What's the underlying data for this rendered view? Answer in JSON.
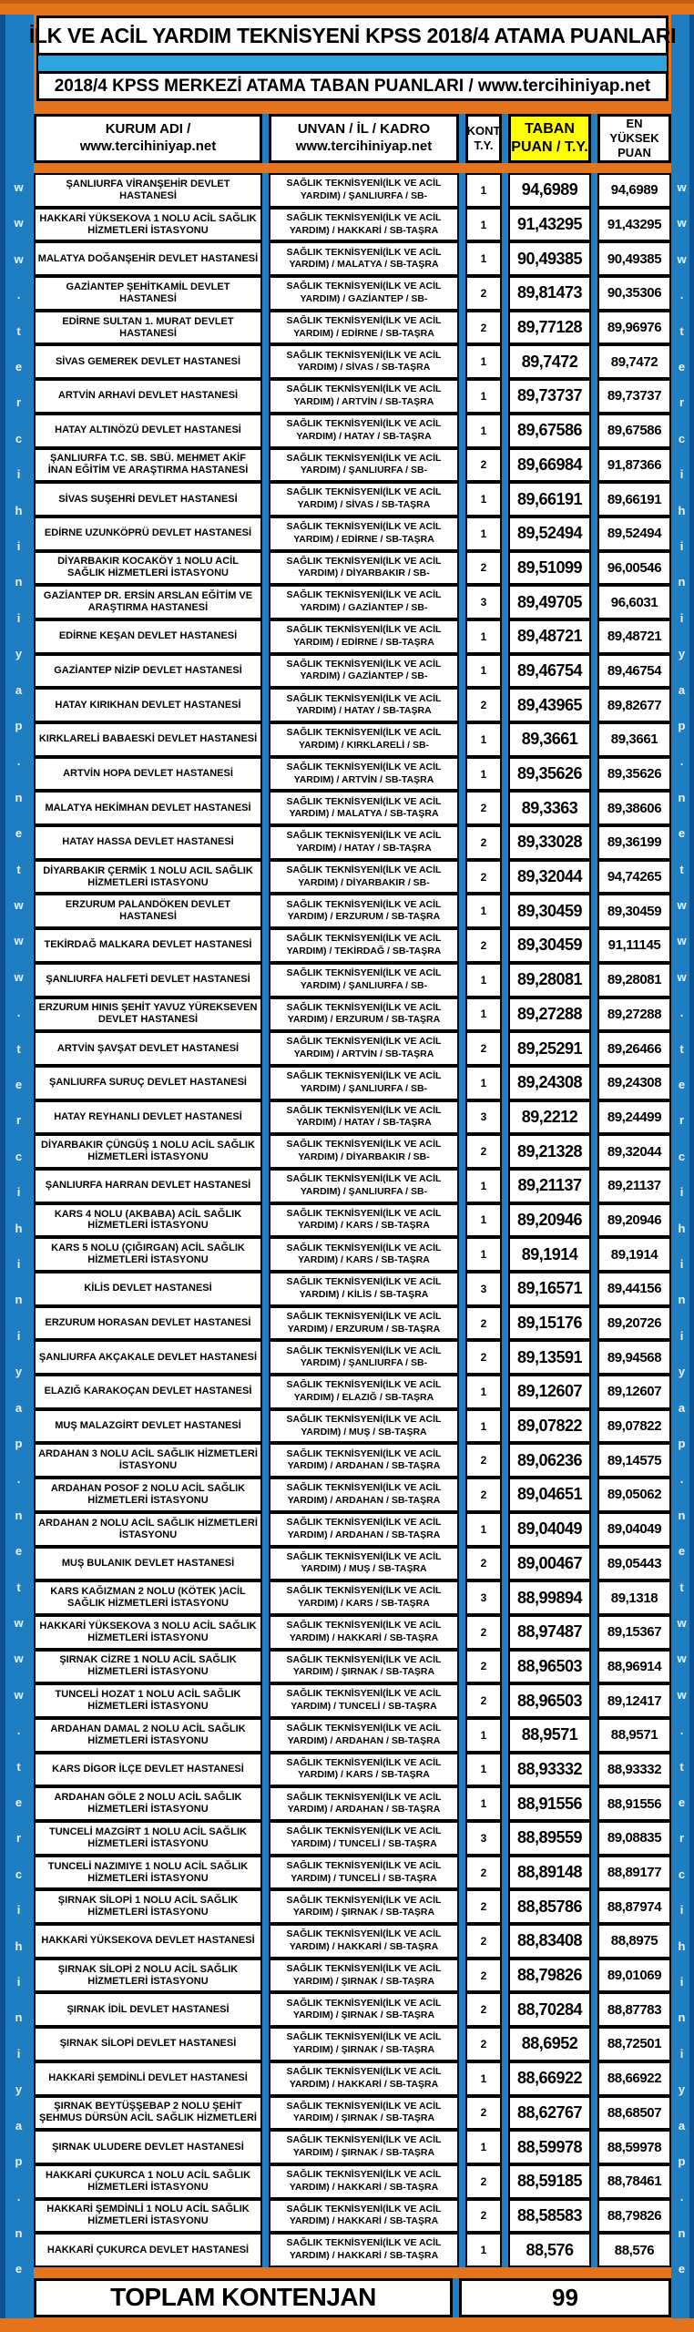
{
  "colors": {
    "frame_orange": "#E4751C",
    "border_blue": "#1F7EC2",
    "divider_light_blue": "#2CA5DE",
    "taban_header_yellow": "#FFFF00",
    "cell_bg": "#FFFFFF",
    "text": "#000000"
  },
  "watermark": "www.tercihiniyap.net",
  "title": "İLK VE ACİL YARDIM TEKNİSYENİ KPSS 2018/4 ATAMA PUANLARI",
  "subtitle": "2018/4 KPSS MERKEZİ ATAMA TABAN PUANLARI / www.tercihiniyap.net",
  "header": {
    "kurum_line1": "KURUM ADI /",
    "kurum_line2": "www.tercihiniyap.net",
    "unvan_line1": "UNVAN / İL / KADRO",
    "unvan_line2": "www.tercihiniyap.net",
    "kont_line1": "KONT",
    "kont_line2": "T.Y.",
    "taban_line1": "TABAN",
    "taban_line2": "PUAN / T.Y.",
    "yuksek_line1": "EN YÜKSEK",
    "yuksek_line2": "PUAN"
  },
  "table": {
    "unvan_line1": "SAĞLIK TEKNİSYENİ(İLK VE ACİL"
  },
  "rows": [
    {
      "kurum": "ŞANLIURFA VİRANŞEHİR DEVLET HASTANESİ",
      "unvan_line2": "YARDIM) / ŞANLIURFA / SB-",
      "kont": "1",
      "taban": "94,6989",
      "yuksek": "94,6989"
    },
    {
      "kurum": "HAKKARİ YÜKSEKOVA 1 NOLU ACİL SAĞLIK HİZMETLERİ İSTASYONU",
      "unvan_line2": "YARDIM) / HAKKARİ / SB-TAŞRA",
      "kont": "1",
      "taban": "91,43295",
      "yuksek": "91,43295"
    },
    {
      "kurum": "MALATYA DOĞANŞEHİR DEVLET HASTANESİ",
      "unvan_line2": "YARDIM) / MALATYA / SB-TAŞRA",
      "kont": "1",
      "taban": "90,49385",
      "yuksek": "90,49385"
    },
    {
      "kurum": "GAZİANTEP ŞEHİTKAMİL DEVLET HASTANESİ",
      "unvan_line2": "YARDIM) / GAZİANTEP / SB-",
      "kont": "2",
      "taban": "89,81473",
      "yuksek": "90,35306"
    },
    {
      "kurum": "EDİRNE SULTAN 1. MURAT DEVLET HASTANESİ",
      "unvan_line2": "YARDIM) / EDİRNE / SB-TAŞRA",
      "kont": "2",
      "taban": "89,77128",
      "yuksek": "89,96976"
    },
    {
      "kurum": "SİVAS GEMEREK DEVLET HASTANESİ",
      "unvan_line2": "YARDIM) / SİVAS / SB-TAŞRA",
      "kont": "1",
      "taban": "89,7472",
      "yuksek": "89,7472"
    },
    {
      "kurum": "ARTVİN ARHAVİ DEVLET HASTANESİ",
      "unvan_line2": "YARDIM) / ARTVİN / SB-TAŞRA",
      "kont": "1",
      "taban": "89,73737",
      "yuksek": "89,73737"
    },
    {
      "kurum": "HATAY ALTINÖZÜ DEVLET HASTANESİ",
      "unvan_line2": "YARDIM) / HATAY / SB-TAŞRA",
      "kont": "1",
      "taban": "89,67586",
      "yuksek": "89,67586"
    },
    {
      "kurum": "ŞANLIURFA T.C. SB. SBÜ. MEHMET AKİF İNAN EĞİTİM VE ARAŞTIRMA HASTANESİ",
      "unvan_line2": "YARDIM) / ŞANLIURFA / SB-",
      "kont": "2",
      "taban": "89,66984",
      "yuksek": "91,87366"
    },
    {
      "kurum": "SİVAS SUŞEHRİ DEVLET HASTANESİ",
      "unvan_line2": "YARDIM) / SİVAS / SB-TAŞRA",
      "kont": "1",
      "taban": "89,66191",
      "yuksek": "89,66191"
    },
    {
      "kurum": "EDİRNE UZUNKÖPRÜ DEVLET HASTANESİ",
      "unvan_line2": "YARDIM) / EDİRNE / SB-TAŞRA",
      "kont": "1",
      "taban": "89,52494",
      "yuksek": "89,52494"
    },
    {
      "kurum": "DİYARBAKIR KOCAKÖY 1 NOLU ACİL SAĞLIK HİZMETLERİ İSTASYONU",
      "unvan_line2": "YARDIM) / DİYARBAKIR / SB-",
      "kont": "2",
      "taban": "89,51099",
      "yuksek": "96,00546"
    },
    {
      "kurum": "GAZİANTEP DR. ERSİN ARSLAN EĞİTİM VE ARAŞTIRMA HASTANESİ",
      "unvan_line2": "YARDIM) / GAZİANTEP / SB-",
      "kont": "3",
      "taban": "89,49705",
      "yuksek": "96,6031"
    },
    {
      "kurum": "EDİRNE KEŞAN DEVLET HASTANESİ",
      "unvan_line2": "YARDIM) / EDİRNE / SB-TAŞRA",
      "kont": "1",
      "taban": "89,48721",
      "yuksek": "89,48721"
    },
    {
      "kurum": "GAZİANTEP NİZİP DEVLET HASTANESİ",
      "unvan_line2": "YARDIM) / GAZİANTEP / SB-",
      "kont": "1",
      "taban": "89,46754",
      "yuksek": "89,46754"
    },
    {
      "kurum": "HATAY KIRIKHAN DEVLET HASTANESİ",
      "unvan_line2": "YARDIM) / HATAY / SB-TAŞRA",
      "kont": "2",
      "taban": "89,43965",
      "yuksek": "89,82677"
    },
    {
      "kurum": "KIRKLARELİ BABAESKİ DEVLET HASTANESİ",
      "unvan_line2": "YARDIM) / KIRKLARELİ / SB-",
      "kont": "1",
      "taban": "89,3661",
      "yuksek": "89,3661"
    },
    {
      "kurum": "ARTVİN HOPA DEVLET HASTANESİ",
      "unvan_line2": "YARDIM) / ARTVİN / SB-TAŞRA",
      "kont": "1",
      "taban": "89,35626",
      "yuksek": "89,35626"
    },
    {
      "kurum": "MALATYA HEKİMHAN DEVLET HASTANESİ",
      "unvan_line2": "YARDIM) / MALATYA / SB-TAŞRA",
      "kont": "2",
      "taban": "89,3363",
      "yuksek": "89,38606"
    },
    {
      "kurum": "HATAY HASSA DEVLET HASTANESİ",
      "unvan_line2": "YARDIM) / HATAY / SB-TAŞRA",
      "kont": "2",
      "taban": "89,33028",
      "yuksek": "89,36199"
    },
    {
      "kurum": "DİYARBAKIR ÇERMİK 1 NOLU ACIL SAĞLIK HİZMETLERİ ISTASYONU",
      "unvan_line2": "YARDIM) / DİYARBAKIR / SB-",
      "kont": "2",
      "taban": "89,32044",
      "yuksek": "94,74265"
    },
    {
      "kurum": "ERZURUM PALANDÖKEN DEVLET HASTANESİ",
      "unvan_line2": "YARDIM) / ERZURUM / SB-TAŞRA",
      "kont": "1",
      "taban": "89,30459",
      "yuksek": "89,30459"
    },
    {
      "kurum": "TEKİRDAĞ MALKARA DEVLET HASTANESİ",
      "unvan_line2": "YARDIM) / TEKİRDAĞ / SB-TAŞRA",
      "kont": "2",
      "taban": "89,30459",
      "yuksek": "91,11145"
    },
    {
      "kurum": "ŞANLIURFA HALFETİ DEVLET HASTANESİ",
      "unvan_line2": "YARDIM) / ŞANLIURFA / SB-",
      "kont": "1",
      "taban": "89,28081",
      "yuksek": "89,28081"
    },
    {
      "kurum": "ERZURUM HINIS ŞEHİT YAVUZ YÜREKSEVEN DEVLET HASTANESİ",
      "unvan_line2": "YARDIM) / ERZURUM / SB-TAŞRA",
      "kont": "1",
      "taban": "89,27288",
      "yuksek": "89,27288"
    },
    {
      "kurum": "ARTVİN ŞAVŞAT DEVLET HASTANESİ",
      "unvan_line2": "YARDIM) / ARTVİN / SB-TAŞRA",
      "kont": "2",
      "taban": "89,25291",
      "yuksek": "89,26466"
    },
    {
      "kurum": "ŞANLIURFA SURUÇ DEVLET HASTANESİ",
      "unvan_line2": "YARDIM) / ŞANLIURFA / SB-",
      "kont": "1",
      "taban": "89,24308",
      "yuksek": "89,24308"
    },
    {
      "kurum": "HATAY REYHANLI DEVLET HASTANESİ",
      "unvan_line2": "YARDIM) / HATAY / SB-TAŞRA",
      "kont": "3",
      "taban": "89,2212",
      "yuksek": "89,24499"
    },
    {
      "kurum": "DİYARBAKIR ÇÜNGÜŞ 1 NOLU ACİL SAĞLIK HİZMETLERİ İSTASYONU",
      "unvan_line2": "YARDIM) / DİYARBAKIR / SB-",
      "kont": "2",
      "taban": "89,21328",
      "yuksek": "89,32044"
    },
    {
      "kurum": "ŞANLIURFA HARRAN DEVLET HASTANESİ",
      "unvan_line2": "YARDIM) / ŞANLIURFA / SB-",
      "kont": "1",
      "taban": "89,21137",
      "yuksek": "89,21137"
    },
    {
      "kurum": "KARS 4 NOLU (AKBABA) ACİL SAĞLIK HİZMETLERİ İSTASYONU",
      "unvan_line2": "YARDIM) / KARS / SB-TAŞRA",
      "kont": "1",
      "taban": "89,20946",
      "yuksek": "89,20946"
    },
    {
      "kurum": "KARS 5 NOLU (ÇIĞIRGAN) ACİL SAĞLIK HİZMETLERİ İSTASYONU",
      "unvan_line2": "YARDIM) / KARS / SB-TAŞRA",
      "kont": "1",
      "taban": "89,1914",
      "yuksek": "89,1914"
    },
    {
      "kurum": "KİLİS DEVLET HASTANESİ",
      "unvan_line2": "YARDIM) / KİLİS / SB-TAŞRA",
      "kont": "3",
      "taban": "89,16571",
      "yuksek": "89,44156"
    },
    {
      "kurum": "ERZURUM HORASAN DEVLET HASTANESİ",
      "unvan_line2": "YARDIM) / ERZURUM / SB-TAŞRA",
      "kont": "2",
      "taban": "89,15176",
      "yuksek": "89,20726"
    },
    {
      "kurum": "ŞANLIURFA AKÇAKALE DEVLET HASTANESİ",
      "unvan_line2": "YARDIM) / ŞANLIURFA / SB-",
      "kont": "2",
      "taban": "89,13591",
      "yuksek": "89,94568"
    },
    {
      "kurum": "ELAZIĞ KARAKOÇAN DEVLET HASTANESİ",
      "unvan_line2": "YARDIM) / ELAZIĞ / SB-TAŞRA",
      "kont": "1",
      "taban": "89,12607",
      "yuksek": "89,12607"
    },
    {
      "kurum": "MUŞ MALAZGİRT DEVLET HASTANESİ",
      "unvan_line2": "YARDIM) / MUŞ / SB-TAŞRA",
      "kont": "1",
      "taban": "89,07822",
      "yuksek": "89,07822"
    },
    {
      "kurum": "ARDAHAN 3 NOLU ACİL SAĞLIK HİZMETLERİ İSTASYONU",
      "unvan_line2": "YARDIM) / ARDAHAN / SB-TAŞRA",
      "kont": "2",
      "taban": "89,06236",
      "yuksek": "89,14575"
    },
    {
      "kurum": "ARDAHAN POSOF 2 NOLU ACİL SAĞLIK HİZMETLERİ İSTASYONU",
      "unvan_line2": "YARDIM) / ARDAHAN / SB-TAŞRA",
      "kont": "2",
      "taban": "89,04651",
      "yuksek": "89,05062"
    },
    {
      "kurum": "ARDAHAN 2 NOLU ACİL SAĞLIK HİZMETLERİ İSTASYONU",
      "unvan_line2": "YARDIM) / ARDAHAN / SB-TAŞRA",
      "kont": "1",
      "taban": "89,04049",
      "yuksek": "89,04049"
    },
    {
      "kurum": "MUŞ BULANIK DEVLET HASTANESİ",
      "unvan_line2": "YARDIM) / MUŞ / SB-TAŞRA",
      "kont": "2",
      "taban": "89,00467",
      "yuksek": "89,05443"
    },
    {
      "kurum": "KARS KAĞIZMAN 2 NOLU (KÖTEK )ACİL SAĞLIK HİZMETLERİ İSTASYONU",
      "unvan_line2": "YARDIM) / KARS / SB-TAŞRA",
      "kont": "3",
      "taban": "88,99894",
      "yuksek": "89,1318"
    },
    {
      "kurum": "HAKKARİ YÜKSEKOVA 3 NOLU ACİL SAĞLIK HİZMETLERİ İSTASYONU",
      "unvan_line2": "YARDIM) / HAKKARİ / SB-TAŞRA",
      "kont": "2",
      "taban": "88,97487",
      "yuksek": "89,15367"
    },
    {
      "kurum": "ŞIRNAK CİZRE 1 NOLU ACİL SAĞLIK HİZMETLERİ İSTASYONU",
      "unvan_line2": "YARDIM) / ŞIRNAK / SB-TAŞRA",
      "kont": "2",
      "taban": "88,96503",
      "yuksek": "88,96914"
    },
    {
      "kurum": "TUNCELİ HOZAT 1 NOLU ACİL SAĞLIK HİZMETLERİ İSTASYONU",
      "unvan_line2": "YARDIM) / TUNCELİ / SB-TAŞRA",
      "kont": "2",
      "taban": "88,96503",
      "yuksek": "89,12417"
    },
    {
      "kurum": "ARDAHAN DAMAL 2 NOLU ACİL SAĞLIK HİZMETLERİ İSTASYONU",
      "unvan_line2": "YARDIM) / ARDAHAN / SB-TAŞRA",
      "kont": "1",
      "taban": "88,9571",
      "yuksek": "88,9571"
    },
    {
      "kurum": "KARS DİGOR İLÇE DEVLET HASTANESİ",
      "unvan_line2": "YARDIM) / KARS / SB-TAŞRA",
      "kont": "1",
      "taban": "88,93332",
      "yuksek": "88,93332"
    },
    {
      "kurum": "ARDAHAN GÖLE 2 NOLU ACİL SAĞLIK HİZMETLERİ İSTASYONU",
      "unvan_line2": "YARDIM) / ARDAHAN / SB-TAŞRA",
      "kont": "1",
      "taban": "88,91556",
      "yuksek": "88,91556"
    },
    {
      "kurum": "TUNCELİ MAZGİRT 1 NOLU ACİL SAĞLIK HİZMETLERİ İSTASYONU",
      "unvan_line2": "YARDIM) / TUNCELİ / SB-TAŞRA",
      "kont": "3",
      "taban": "88,89559",
      "yuksek": "89,08835"
    },
    {
      "kurum": "TUNCELİ NAZIMIYE 1 NOLU ACİL SAĞLIK HİZMETLERİ İSTASYONU",
      "unvan_line2": "YARDIM) / TUNCELİ / SB-TAŞRA",
      "kont": "2",
      "taban": "88,89148",
      "yuksek": "88,89177"
    },
    {
      "kurum": "ŞIRNAK SİLOPİ 1 NOLU ACİL SAĞLIK HİZMETLERİ İSTASYONU",
      "unvan_line2": "YARDIM) / ŞIRNAK / SB-TAŞRA",
      "kont": "2",
      "taban": "88,85786",
      "yuksek": "88,87974"
    },
    {
      "kurum": "HAKKARİ YÜKSEKOVA DEVLET HASTANESİ",
      "unvan_line2": "YARDIM) / HAKKARİ / SB-TAŞRA",
      "kont": "2",
      "taban": "88,83408",
      "yuksek": "88,8975"
    },
    {
      "kurum": "ŞIRNAK SİLOPİ 2 NOLU ACİL SAĞLIK HİZMETLERİ İSTASYONU",
      "unvan_line2": "YARDIM) / ŞIRNAK / SB-TAŞRA",
      "kont": "2",
      "taban": "88,79826",
      "yuksek": "89,01069"
    },
    {
      "kurum": "ŞIRNAK İDİL DEVLET HASTANESİ",
      "unvan_line2": "YARDIM) / ŞIRNAK / SB-TAŞRA",
      "kont": "2",
      "taban": "88,70284",
      "yuksek": "88,87783"
    },
    {
      "kurum": "ŞIRNAK SİLOPİ DEVLET HASTANESİ",
      "unvan_line2": "YARDIM) / ŞIRNAK / SB-TAŞRA",
      "kont": "2",
      "taban": "88,6952",
      "yuksek": "88,72501"
    },
    {
      "kurum": "HAKKARİ ŞEMDİNLİ DEVLET HASTANESİ",
      "unvan_line2": "YARDIM) / HAKKARİ / SB-TAŞRA",
      "kont": "1",
      "taban": "88,66922",
      "yuksek": "88,66922"
    },
    {
      "kurum": "ŞIRNAK BEYTÜŞŞEBAP 2 NOLU ŞEHİT ŞEHMUS DÜRSÜN ACİL SAĞLIK HİZMETLERİ",
      "unvan_line2": "YARDIM) / ŞIRNAK / SB-TAŞRA",
      "kont": "2",
      "taban": "88,62767",
      "yuksek": "88,68507"
    },
    {
      "kurum": "ŞIRNAK ULUDERE DEVLET HASTANESİ",
      "unvan_line2": "YARDIM) / ŞIRNAK / SB-TAŞRA",
      "kont": "1",
      "taban": "88,59978",
      "yuksek": "88,59978"
    },
    {
      "kurum": "HAKKARİ ÇUKURCA 1 NOLU ACİL SAĞLIK HİZMETLERİ İSTASYONU",
      "unvan_line2": "YARDIM) / HAKKARİ / SB-TAŞRA",
      "kont": "2",
      "taban": "88,59185",
      "yuksek": "88,78461"
    },
    {
      "kurum": "HAKKARİ ŞEMDİNLİ 1 NOLU ACİL SAĞLIK HİZMETLERİ İSTASYONU",
      "unvan_line2": "YARDIM) / HAKKARİ / SB-TAŞRA",
      "kont": "2",
      "taban": "88,58583",
      "yuksek": "88,79826"
    },
    {
      "kurum": "HAKKARİ ÇUKURCA DEVLET HASTANESİ",
      "unvan_line2": "YARDIM) / HAKKARİ / SB-TAŞRA",
      "kont": "1",
      "taban": "88,576",
      "yuksek": "88,576"
    }
  ],
  "footer": {
    "label": "TOPLAM KONTENJAN",
    "total": "99"
  }
}
